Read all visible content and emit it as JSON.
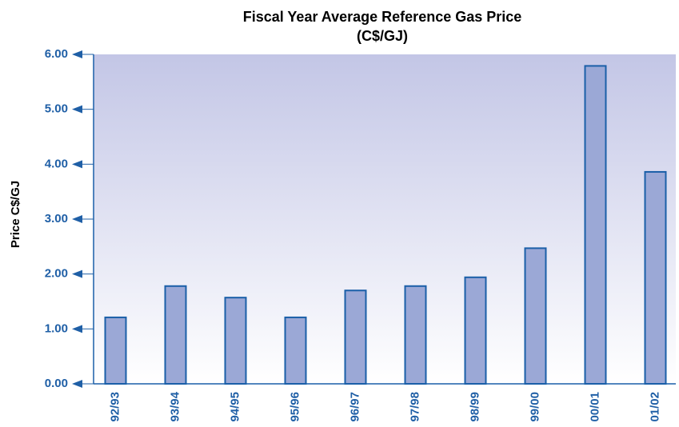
{
  "chart_data": {
    "type": "bar",
    "title": "Fiscal Year Average Reference Gas Price",
    "subtitle": "(C$/GJ)",
    "y_label": "Price C$/GJ",
    "categories": [
      "92/93",
      "93/94",
      "94/95",
      "95/96",
      "96/97",
      "97/98",
      "98/99",
      "99/00",
      "00/01",
      "01/02"
    ],
    "values": [
      1.21,
      1.78,
      1.57,
      1.21,
      1.7,
      1.78,
      1.94,
      2.47,
      5.79,
      3.86
    ],
    "color": "#9ba8d6",
    "edge_color": "#1a5fa8",
    "ylim": [
      0,
      6
    ],
    "yticks": [
      {
        "value": 0,
        "label": "0.00"
      },
      {
        "value": 1,
        "label": "1.00"
      },
      {
        "value": 2,
        "label": "2.00"
      },
      {
        "value": 3,
        "label": "3.00"
      },
      {
        "value": 4,
        "label": "4.00"
      },
      {
        "value": 5,
        "label": "5.00"
      },
      {
        "value": 6,
        "label": "6.00"
      }
    ],
    "grid": false
  }
}
